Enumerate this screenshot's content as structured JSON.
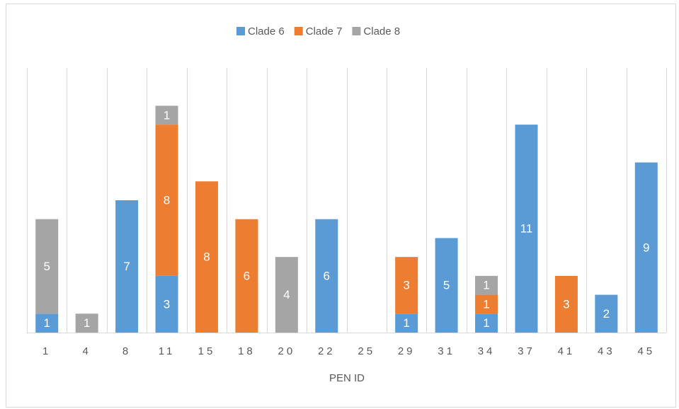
{
  "chart_data": {
    "type": "bar",
    "stacked": true,
    "x_label": "PEN ID",
    "categories": [
      "1",
      "4",
      "8",
      "11",
      "15",
      "18",
      "20",
      "22",
      "25",
      "29",
      "31",
      "34",
      "37",
      "41",
      "43",
      "45"
    ],
    "series": [
      {
        "name": "Clade 6",
        "color": "#5b9bd5",
        "values": [
          1,
          null,
          7,
          3,
          null,
          null,
          null,
          6,
          null,
          1,
          5,
          1,
          11,
          null,
          2,
          9
        ]
      },
      {
        "name": "Clade 7",
        "color": "#ed7d31",
        "values": [
          null,
          null,
          null,
          8,
          8,
          6,
          null,
          null,
          null,
          3,
          null,
          1,
          null,
          3,
          null,
          null
        ]
      },
      {
        "name": "Clade 8",
        "color": "#a5a5a5",
        "values": [
          5,
          1,
          null,
          1,
          null,
          null,
          4,
          null,
          null,
          null,
          null,
          1,
          null,
          null,
          null,
          null
        ]
      }
    ],
    "ylim": [
      0,
      14
    ],
    "grid": true,
    "legend": "top"
  }
}
